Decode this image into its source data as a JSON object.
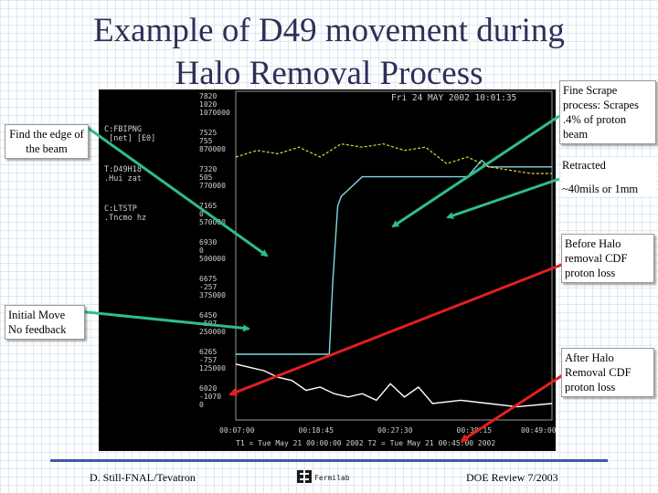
{
  "title_lines": [
    "Example of D49 movement during",
    "Halo Removal Process"
  ],
  "callouts": {
    "fine_scrape": "Fine Scrape process: Scrapes .4% of proton beam",
    "find_edge": "Find the edge of the beam",
    "retracted_1": "Retracted",
    "retracted_2": "~40mils or 1mm",
    "before_halo": "Before Halo removal CDF proton loss",
    "initial_move": "Initial Move No feedback",
    "after_halo": "After Halo Removal CDF proton loss"
  },
  "footer": {
    "left": "D. Still-FNAL/Tevatron",
    "right": "DOE Review 7/2003",
    "logo_text": "Fermilab"
  },
  "colors": {
    "arrow_green": "#2ebd8c",
    "arrow_red": "#e02020",
    "trace_cyan": "#7fd8e0",
    "trace_yellow": "#d8e040",
    "trace_white": "#ffffff",
    "plot_bg": "#000000"
  },
  "chart_data": {
    "type": "line",
    "header": "Fri 24 MAY 2002 10:01:35",
    "channel_labels": [
      {
        "name": "C:FBIPNG",
        "sub": ".[net] [E0]"
      },
      {
        "name": "T:D49H18",
        "sub": ".Hui zat"
      },
      {
        "name": "C:LTSTP",
        "sub": ".Tncmo hz"
      }
    ],
    "axis_scales": [
      [
        "7820",
        "1020",
        "1070000"
      ],
      [
        "7525",
        "755",
        "870000"
      ],
      [
        "7320",
        "505",
        "770000"
      ],
      [
        "7165",
        "0",
        "570000"
      ],
      [
        "6930",
        "0",
        "500000"
      ],
      [
        "6675",
        "-257",
        "375000"
      ],
      [
        "6450",
        "-507",
        "250000"
      ],
      [
        "6265",
        "-757",
        "125000"
      ],
      [
        "6020",
        "-1070",
        "0"
      ]
    ],
    "x_ticks": [
      "00:07:00",
      "00:18:45",
      "00:27:30",
      "00:38:15",
      "00:49:00"
    ],
    "time_footer": "T1 = Tue May 21 00:00:00 2002     T2 = Tue May 21 00:45:00 2002",
    "x_range": [
      0,
      45
    ],
    "y_range": [
      0,
      1
    ],
    "series": [
      {
        "x": [
          0,
          8,
          13.3,
          13.8,
          14.5,
          15,
          16,
          17,
          18,
          20,
          25,
          30,
          33,
          35,
          36,
          41,
          45
        ],
        "y": [
          0.2,
          0.2,
          0.2,
          0.42,
          0.65,
          0.68,
          0.7,
          0.72,
          0.74,
          0.74,
          0.74,
          0.74,
          0.74,
          0.79,
          0.77,
          0.77,
          0.77
        ]
      },
      {
        "x": [
          0,
          3,
          6,
          9,
          12,
          15,
          18,
          21,
          24,
          27,
          30,
          33,
          36,
          39,
          42,
          45
        ],
        "y": [
          0.8,
          0.82,
          0.81,
          0.83,
          0.8,
          0.84,
          0.83,
          0.84,
          0.82,
          0.83,
          0.78,
          0.8,
          0.77,
          0.76,
          0.75,
          0.75
        ]
      },
      {
        "x": [
          0,
          2,
          4,
          6,
          8,
          10,
          12,
          14,
          16,
          18,
          20,
          22,
          24,
          26,
          28,
          32,
          36,
          40,
          45
        ],
        "y": [
          0.17,
          0.16,
          0.15,
          0.13,
          0.12,
          0.09,
          0.1,
          0.08,
          0.07,
          0.08,
          0.06,
          0.11,
          0.07,
          0.1,
          0.05,
          0.06,
          0.05,
          0.04,
          0.05
        ]
      }
    ]
  }
}
